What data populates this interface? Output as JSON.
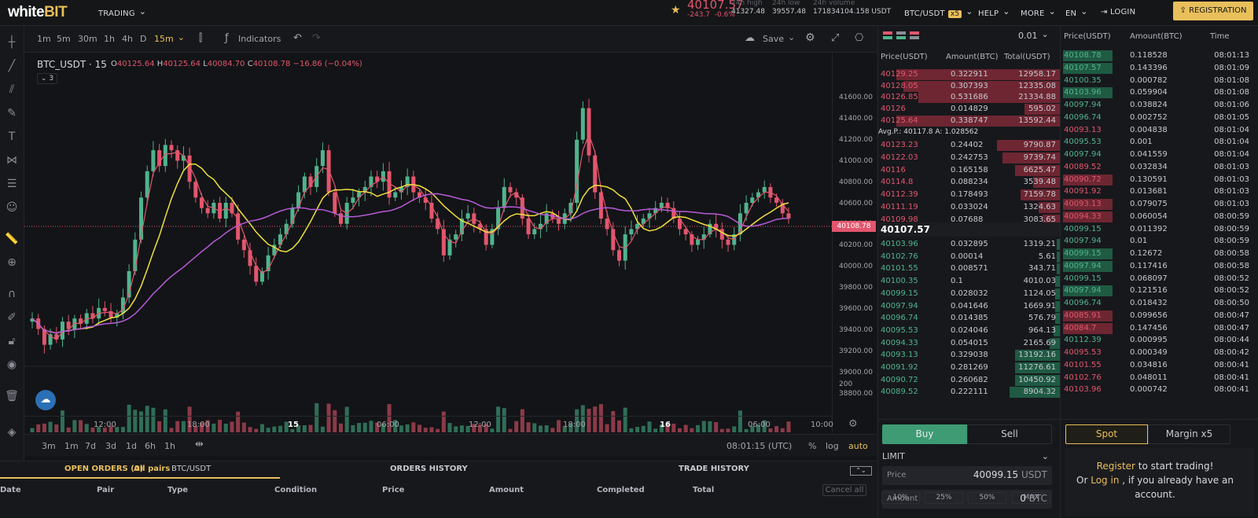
{
  "header": {
    "logo_a": "white",
    "logo_b": "BIT",
    "trading": "TRADING",
    "price": "40107.57",
    "change_abs": "-243.7",
    "change_pct": "-0.6%",
    "high_label": "24h high",
    "high": "41327.48",
    "low_label": "24h low",
    "low": "39557.48",
    "vol_label": "24h volume",
    "vol": "171834104.158 USDT",
    "pair": "BTC/USDT",
    "leverage": "x5",
    "help": "HELP",
    "more": "MORE",
    "lang": "EN",
    "login": "LOGIN",
    "register": "REGISTRATION"
  },
  "toolbar": {
    "intervals": [
      "1m",
      "5m",
      "30m",
      "1h",
      "4h",
      "D",
      "15m"
    ],
    "indicators": "Indicators",
    "save": "Save"
  },
  "chart": {
    "symbol": "BTC_USDT",
    "tf": "15",
    "o": "40125.64",
    "h": "40125.64",
    "l": "40084.70",
    "c": "40108.78",
    "chg": "−16.86 (−0.04%)",
    "ind_count": "3",
    "price_label": "40108.78",
    "vol_tick": "200",
    "yticks": [
      "41600.00",
      "41400.00",
      "41200.00",
      "41000.00",
      "40800.00",
      "40600.00",
      "40400.00",
      "40200.00",
      "40000.00",
      "39800.00",
      "39600.00",
      "39400.00",
      "39200.00",
      "39000.00",
      "38800.00"
    ],
    "xticks": [
      {
        "t": "12:00"
      },
      {
        "t": "18:00"
      },
      {
        "t": "15",
        "b": true
      },
      {
        "t": "06:00"
      },
      {
        "t": "12:00"
      },
      {
        "t": "18:00"
      },
      {
        "t": "16",
        "b": true
      },
      {
        "t": "06:00"
      },
      {
        "t": "10:00"
      }
    ],
    "ranges": [
      "3m",
      "1m",
      "7d",
      "3d",
      "1d",
      "6h",
      "1h"
    ],
    "clock": "08:01:15 (UTC)",
    "pct": "%",
    "log": "log",
    "auto": "auto"
  },
  "chart_data": {
    "type": "candlestick",
    "ylim": [
      38800,
      41700
    ],
    "closes": [
      39150,
      39050,
      38900,
      39000,
      38950,
      39120,
      39050,
      39150,
      39100,
      39200,
      39150,
      39250,
      39220,
      39160,
      39200,
      39350,
      39600,
      39900,
      40300,
      40550,
      40750,
      40600,
      40800,
      40750,
      40650,
      40700,
      40450,
      40300,
      40200,
      40150,
      40250,
      40100,
      40250,
      40150,
      39900,
      39800,
      39650,
      39500,
      39600,
      39750,
      39850,
      39950,
      40050,
      40200,
      40350,
      40500,
      40400,
      40600,
      40750,
      40350,
      40150,
      40050,
      40250,
      40300,
      40350,
      40400,
      40500,
      40450,
      40550,
      40300,
      40350,
      40400,
      40500,
      40350,
      40300,
      40250,
      40100,
      40000,
      39750,
      39900,
      39950,
      40100,
      40150,
      40050,
      40000,
      39850,
      40000,
      40200,
      40400,
      40350,
      40300,
      40100,
      39950,
      40000,
      40050,
      40150,
      40100,
      40050,
      40150,
      40250,
      40850,
      41150,
      40700,
      40350,
      40100,
      40000,
      39800,
      39700,
      39950,
      40000,
      40050,
      40100,
      40150,
      40200,
      40250,
      40200,
      40100,
      40000,
      39950,
      39850,
      39900,
      39950,
      40050,
      40000,
      39900,
      39850,
      39950,
      40150,
      40250,
      40300,
      40350,
      40400,
      40300,
      40250,
      40150,
      40100
    ]
  },
  "orderbook": {
    "step": "0.01",
    "headers": [
      "Price(USDT)",
      "Amount(BTC)",
      "Total(USDT)"
    ],
    "asks_top": [
      [
        "40129.25",
        "0.322911",
        "12958.17",
        0.9
      ],
      [
        "40128.05",
        "0.307393",
        "12335.08",
        0.86
      ],
      [
        "40126.85",
        "0.531686",
        "21334.88",
        0.78
      ],
      [
        "40126",
        "0.014829",
        "595.02",
        0.2
      ],
      [
        "40125.64",
        "0.338747",
        "13592.44",
        0.9
      ]
    ],
    "avg": "Avg.P.: 40117.8 A: 1.028562",
    "asks": [
      [
        "40123.23",
        "0.24402",
        "9790.87",
        0.35
      ],
      [
        "40122.03",
        "0.242753",
        "9739.74",
        0.32
      ],
      [
        "40116",
        "0.165158",
        "6625.47",
        0.25
      ],
      [
        "40114.8",
        "0.088234",
        "3539.48",
        0.15
      ],
      [
        "40112.39",
        "0.178493",
        "7159.78",
        0.22
      ],
      [
        "40111.19",
        "0.033024",
        "1324.63",
        0.12
      ],
      [
        "40109.98",
        "0.07688",
        "3083.65",
        0.1
      ]
    ],
    "mid": "40107.57",
    "bids": [
      [
        "40103.96",
        "0.032895",
        "1319.21",
        0.02
      ],
      [
        "40102.76",
        "0.00014",
        "5.61",
        0.02
      ],
      [
        "40101.55",
        "0.008571",
        "343.71",
        0.02
      ],
      [
        "40100.35",
        "0.1",
        "4010.03",
        0.03
      ],
      [
        "40099.15",
        "0.028032",
        "1124.05",
        0.03
      ],
      [
        "40097.94",
        "0.041646",
        "1669.91",
        0.03
      ],
      [
        "40096.74",
        "0.014385",
        "576.79",
        0.03
      ],
      [
        "40095.53",
        "0.024046",
        "964.13",
        0.04
      ],
      [
        "40094.33",
        "0.054015",
        "2165.69",
        0.06
      ],
      [
        "40093.13",
        "0.329038",
        "13192.16",
        0.25
      ],
      [
        "40091.92",
        "0.281269",
        "11276.61",
        0.25
      ],
      [
        "40090.72",
        "0.260682",
        "10450.92",
        0.25
      ],
      [
        "40089.52",
        "0.222111",
        "8904.32",
        0.28
      ]
    ]
  },
  "trades": {
    "headers": [
      "Price(USDT)",
      "Amount(BTC)",
      "Time"
    ],
    "rows": [
      [
        "40108.78",
        "0.118528",
        "08:01:13",
        "g",
        1
      ],
      [
        "40107.57",
        "0.143396",
        "08:01:09",
        "g",
        1
      ],
      [
        "40100.35",
        "0.000782",
        "08:01:08",
        "g",
        0
      ],
      [
        "40103.96",
        "0.059904",
        "08:01:08",
        "g",
        1
      ],
      [
        "40097.94",
        "0.038824",
        "08:01:06",
        "g",
        0
      ],
      [
        "40096.74",
        "0.002752",
        "08:01:05",
        "g",
        0
      ],
      [
        "40093.13",
        "0.004838",
        "08:01:04",
        "r",
        0
      ],
      [
        "40095.53",
        "0.001",
        "08:01:04",
        "g",
        0
      ],
      [
        "40097.94",
        "0.041559",
        "08:01:04",
        "g",
        0
      ],
      [
        "40089.52",
        "0.032834",
        "08:01:03",
        "r",
        0
      ],
      [
        "40090.72",
        "0.130591",
        "08:01:03",
        "r",
        1
      ],
      [
        "40091.92",
        "0.013681",
        "08:01:03",
        "r",
        0
      ],
      [
        "40093.13",
        "0.079075",
        "08:01:03",
        "r",
        1
      ],
      [
        "40094.33",
        "0.060054",
        "08:00:59",
        "r",
        1
      ],
      [
        "40099.15",
        "0.011392",
        "08:00:59",
        "g",
        0
      ],
      [
        "40097.94",
        "0.01",
        "08:00:59",
        "g",
        0
      ],
      [
        "40099.15",
        "0.12672",
        "08:00:58",
        "g",
        1
      ],
      [
        "40097.94",
        "0.117416",
        "08:00:58",
        "g",
        1
      ],
      [
        "40099.15",
        "0.068097",
        "08:00:52",
        "g",
        0
      ],
      [
        "40097.94",
        "0.121516",
        "08:00:52",
        "g",
        1
      ],
      [
        "40096.74",
        "0.018432",
        "08:00:50",
        "g",
        0
      ],
      [
        "40085.91",
        "0.099656",
        "08:00:47",
        "r",
        1
      ],
      [
        "40084.7",
        "0.147456",
        "08:00:47",
        "r",
        1
      ],
      [
        "40112.39",
        "0.000995",
        "08:00:44",
        "g",
        0
      ],
      [
        "40095.53",
        "0.000349",
        "08:00:42",
        "r",
        0
      ],
      [
        "40101.55",
        "0.034816",
        "08:00:41",
        "r",
        0
      ],
      [
        "40102.76",
        "0.048011",
        "08:00:41",
        "r",
        0
      ],
      [
        "40103.96",
        "0.000742",
        "08:00:41",
        "r",
        0
      ]
    ]
  },
  "buy": {
    "buy": "Buy",
    "sell": "Sell",
    "type": "LIMIT",
    "price_label": "Price",
    "price": "40099.15",
    "price_unit": "USDT",
    "amount_label": "Amount",
    "amount": "0",
    "amount_unit": "BTC",
    "pcts": [
      "10%",
      "25%",
      "50%",
      "MAX"
    ]
  },
  "spot": {
    "spot": "Spot",
    "margin": "Margin x5",
    "reg": "Register",
    "reg2": " to start trading!",
    "or": "Or ",
    "login": "Log in",
    "login2": " , if you already have an account."
  },
  "orders": {
    "open": "OPEN ORDERS (0)",
    "all": "All pairs",
    "pair": "BTC/USDT",
    "history": "ORDERS HISTORY",
    "trades": "TRADE HISTORY",
    "cols": [
      "Date",
      "Pair",
      "Type",
      "Condition",
      "Price",
      "Amount",
      "Completed",
      "Total"
    ],
    "cancel": "Cancel all"
  }
}
